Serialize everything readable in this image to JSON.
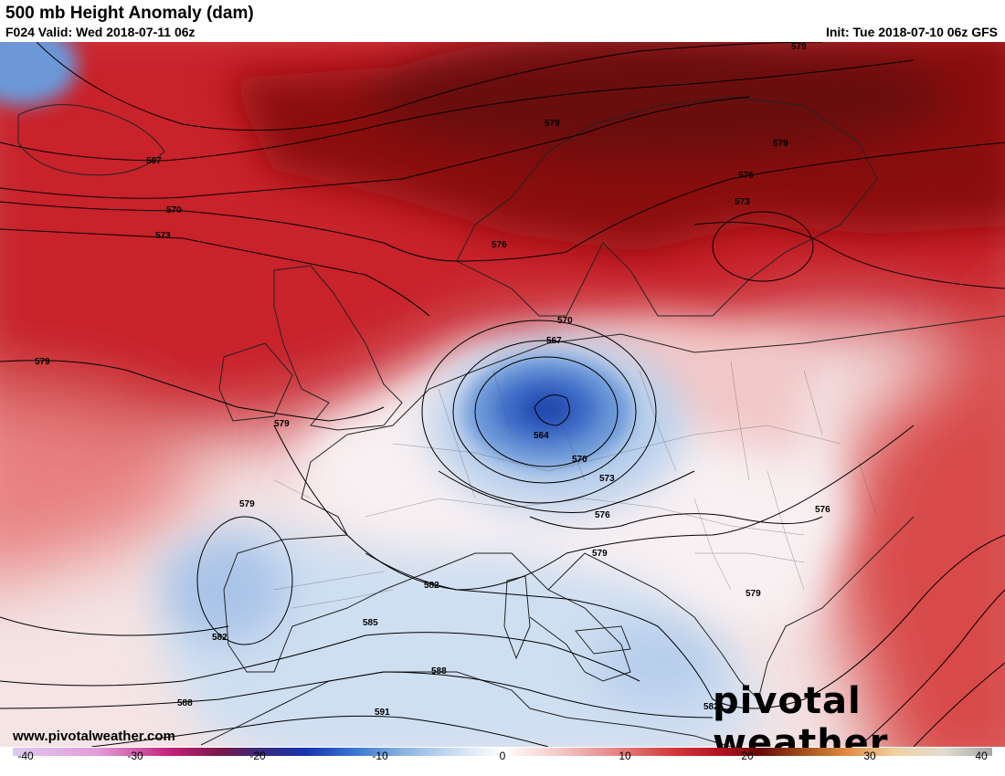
{
  "header": {
    "title": "500 mb Height Anomaly (dam)",
    "valid": "F024 Valid: Wed 2018-07-11 06z",
    "init": "Init: Tue 2018-07-10 06z GFS"
  },
  "branding": {
    "website": "www.pivotalweather.com",
    "logo_text": "pivotal weather",
    "logo_name": "pivotal-weather-logo"
  },
  "colors": {
    "strong_positive": "#7a0a0a",
    "positive": "#c8242c",
    "weak_positive": "#f0b0b0",
    "neutral": "#f8f0f0",
    "weak_negative": "#c8daf0",
    "negative": "#3068c0",
    "strong_negative": "#1838a0"
  },
  "colorbar": {
    "ticks": [
      "-40",
      "-30",
      "-20",
      "-10",
      "0",
      "10",
      "20",
      "30",
      "40"
    ],
    "min": -40,
    "max": 40,
    "stops": [
      {
        "value": -40,
        "color": "#dccbf0"
      },
      {
        "value": -33,
        "color": "#e39ad8"
      },
      {
        "value": -27,
        "color": "#c0207a"
      },
      {
        "value": -23,
        "color": "#781848"
      },
      {
        "value": -20,
        "color": "#3a2878"
      },
      {
        "value": -16,
        "color": "#1834b0"
      },
      {
        "value": -12,
        "color": "#3a78d0"
      },
      {
        "value": -8,
        "color": "#8cb4e4"
      },
      {
        "value": -3,
        "color": "#d8e6f6"
      },
      {
        "value": 0,
        "color": "#ffffff"
      },
      {
        "value": 4,
        "color": "#f6d0d0"
      },
      {
        "value": 9,
        "color": "#e88888"
      },
      {
        "value": 14,
        "color": "#d23838"
      },
      {
        "value": 18,
        "color": "#b01020"
      },
      {
        "value": 21,
        "color": "#6a0808"
      },
      {
        "value": 25,
        "color": "#a85820"
      },
      {
        "value": 28,
        "color": "#e08840"
      },
      {
        "value": 32,
        "color": "#f2d0a0"
      },
      {
        "value": 36,
        "color": "#e0dcd0"
      },
      {
        "value": 40,
        "color": "#a8a8a8"
      }
    ]
  },
  "contour_labels": [
    {
      "name": "contour-label-579-ne",
      "text": "579"
    },
    {
      "name": "contour-label-567-nw",
      "text": "567"
    },
    {
      "name": "contour-label-570-nw",
      "text": "570"
    },
    {
      "name": "contour-label-573-nw",
      "text": "573"
    },
    {
      "name": "contour-label-579-scand",
      "text": "579"
    },
    {
      "name": "contour-label-579-baltic",
      "text": "579"
    },
    {
      "name": "contour-label-576-baltic",
      "text": "576"
    },
    {
      "name": "contour-label-573-baltic",
      "text": "573"
    },
    {
      "name": "contour-label-576-norway",
      "text": "576"
    },
    {
      "name": "contour-label-579-atlantic",
      "text": "579"
    },
    {
      "name": "contour-label-570-low",
      "text": "570"
    },
    {
      "name": "contour-label-567-low",
      "text": "567"
    },
    {
      "name": "contour-label-564-low",
      "text": "564"
    },
    {
      "name": "contour-label-570-alps",
      "text": "570"
    },
    {
      "name": "contour-label-573-alps",
      "text": "573"
    },
    {
      "name": "contour-label-576-adriatic",
      "text": "576"
    },
    {
      "name": "contour-label-579-france",
      "text": "579"
    },
    {
      "name": "contour-label-579-iberia",
      "text": "579"
    },
    {
      "name": "contour-label-582-iberia",
      "text": "582"
    },
    {
      "name": "contour-label-582-med",
      "text": "582"
    },
    {
      "name": "contour-label-585-med",
      "text": "585"
    },
    {
      "name": "contour-label-588-africa",
      "text": "588"
    },
    {
      "name": "contour-label-588-sw",
      "text": "588"
    },
    {
      "name": "contour-label-591-africa",
      "text": "591"
    },
    {
      "name": "contour-label-579-italy",
      "text": "579"
    },
    {
      "name": "contour-label-579-greece",
      "text": "579"
    },
    {
      "name": "contour-label-582-ionian",
      "text": "582"
    },
    {
      "name": "contour-label-576-black-sea",
      "text": "576"
    }
  ]
}
